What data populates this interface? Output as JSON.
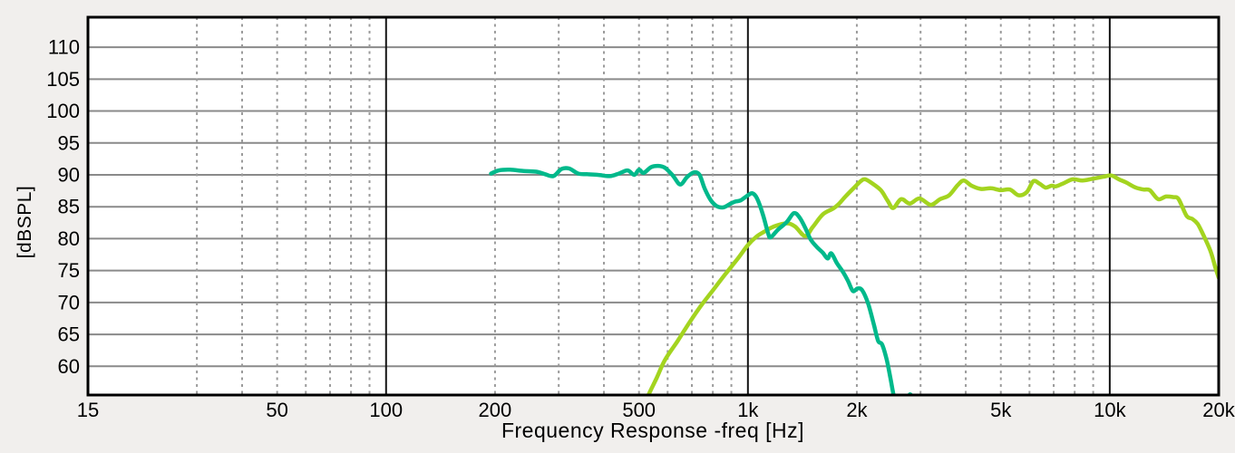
{
  "chart_data": {
    "type": "line",
    "title": "",
    "xlabel": "Frequency Response -freq [Hz]",
    "ylabel": "[dBSPL]",
    "x_scale": "log",
    "xlim": [
      15,
      20000
    ],
    "ylim": [
      55.5,
      114.7
    ],
    "grid": true,
    "legend": "none",
    "x_major_ticks": [
      {
        "f": 15,
        "label": "15"
      },
      {
        "f": 50,
        "label": "50"
      },
      {
        "f": 100,
        "label": "100"
      },
      {
        "f": 200,
        "label": "200"
      },
      {
        "f": 500,
        "label": "500"
      },
      {
        "f": 1000,
        "label": "1k"
      },
      {
        "f": 2000,
        "label": "2k"
      },
      {
        "f": 5000,
        "label": "5k"
      },
      {
        "f": 10000,
        "label": "10k"
      },
      {
        "f": 20000,
        "label": "20k"
      }
    ],
    "y_ticks": [
      60,
      65,
      70,
      75,
      80,
      85,
      90,
      95,
      100,
      105,
      110
    ],
    "x_solid_gridlines": [
      100,
      1000,
      10000
    ],
    "x_dashed_gridlines": [
      30,
      40,
      50,
      60,
      70,
      80,
      90,
      200,
      300,
      400,
      500,
      600,
      700,
      800,
      900,
      2000,
      3000,
      4000,
      5000,
      6000,
      7000,
      8000,
      9000
    ],
    "series": [
      {
        "name": "curve-yellowgreen-highpass",
        "color": "#a3d41f",
        "points": [
          [
            515,
            53.5
          ],
          [
            530,
            55.4
          ],
          [
            560,
            58.2
          ],
          [
            590,
            61.0
          ],
          [
            640,
            64.0
          ],
          [
            690,
            66.9
          ],
          [
            740,
            69.4
          ],
          [
            800,
            71.9
          ],
          [
            865,
            74.4
          ],
          [
            935,
            76.8
          ],
          [
            1000,
            79.0
          ],
          [
            1055,
            80.3
          ],
          [
            1110,
            81.1
          ],
          [
            1180,
            81.9
          ],
          [
            1280,
            82.4
          ],
          [
            1350,
            81.9
          ],
          [
            1440,
            80.4
          ],
          [
            1510,
            81.8
          ],
          [
            1610,
            83.8
          ],
          [
            1720,
            84.7
          ],
          [
            1780,
            85.4
          ],
          [
            1860,
            86.6
          ],
          [
            1950,
            87.8
          ],
          [
            2050,
            89.0
          ],
          [
            2110,
            89.3
          ],
          [
            2200,
            88.7
          ],
          [
            2330,
            87.6
          ],
          [
            2430,
            86.0
          ],
          [
            2520,
            84.8
          ],
          [
            2650,
            86.2
          ],
          [
            2800,
            85.5
          ],
          [
            2980,
            86.3
          ],
          [
            3200,
            85.3
          ],
          [
            3400,
            86.2
          ],
          [
            3600,
            86.8
          ],
          [
            3800,
            88.4
          ],
          [
            3950,
            89.1
          ],
          [
            4150,
            88.3
          ],
          [
            4400,
            87.8
          ],
          [
            4700,
            87.9
          ],
          [
            5000,
            87.6
          ],
          [
            5300,
            87.7
          ],
          [
            5600,
            86.8
          ],
          [
            5900,
            87.3
          ],
          [
            6150,
            89.0
          ],
          [
            6400,
            88.6
          ],
          [
            6650,
            88.0
          ],
          [
            6900,
            88.3
          ],
          [
            7100,
            88.2
          ],
          [
            7400,
            88.6
          ],
          [
            7900,
            89.3
          ],
          [
            8400,
            89.1
          ],
          [
            9000,
            89.4
          ],
          [
            9600,
            89.7
          ],
          [
            10100,
            89.9
          ],
          [
            10600,
            89.3
          ],
          [
            11100,
            88.8
          ],
          [
            11800,
            88.0
          ],
          [
            12400,
            87.7
          ],
          [
            12900,
            87.6
          ],
          [
            13600,
            86.2
          ],
          [
            14300,
            86.6
          ],
          [
            15000,
            86.5
          ],
          [
            15500,
            86.2
          ],
          [
            16300,
            83.6
          ],
          [
            16900,
            83.1
          ],
          [
            17500,
            82.3
          ],
          [
            18200,
            80.4
          ],
          [
            19000,
            78.0
          ],
          [
            19600,
            75.4
          ],
          [
            20000,
            73.9
          ]
        ]
      },
      {
        "name": "curve-teal-lowpass",
        "color": "#00b98b",
        "points": [
          [
            195,
            90.2
          ],
          [
            205,
            90.7
          ],
          [
            220,
            90.8
          ],
          [
            240,
            90.6
          ],
          [
            260,
            90.5
          ],
          [
            275,
            90.1
          ],
          [
            290,
            89.8
          ],
          [
            305,
            90.9
          ],
          [
            320,
            91.0
          ],
          [
            340,
            90.2
          ],
          [
            360,
            90.1
          ],
          [
            385,
            90.0
          ],
          [
            415,
            89.8
          ],
          [
            440,
            90.2
          ],
          [
            465,
            90.7
          ],
          [
            485,
            90.0
          ],
          [
            500,
            90.8
          ],
          [
            515,
            90.3
          ],
          [
            540,
            91.2
          ],
          [
            565,
            91.4
          ],
          [
            590,
            91.1
          ],
          [
            620,
            89.9
          ],
          [
            650,
            88.5
          ],
          [
            680,
            89.7
          ],
          [
            710,
            90.4
          ],
          [
            735,
            90.0
          ],
          [
            760,
            87.8
          ],
          [
            790,
            86.0
          ],
          [
            820,
            85.1
          ],
          [
            855,
            84.9
          ],
          [
            890,
            85.4
          ],
          [
            920,
            85.8
          ],
          [
            955,
            86.0
          ],
          [
            1000,
            86.8
          ],
          [
            1030,
            87.1
          ],
          [
            1060,
            86.3
          ],
          [
            1100,
            83.8
          ],
          [
            1135,
            81.0
          ],
          [
            1155,
            80.2
          ],
          [
            1210,
            81.4
          ],
          [
            1280,
            82.6
          ],
          [
            1340,
            84.0
          ],
          [
            1390,
            83.3
          ],
          [
            1440,
            81.7
          ],
          [
            1490,
            79.9
          ],
          [
            1550,
            78.7
          ],
          [
            1610,
            77.8
          ],
          [
            1660,
            76.9
          ],
          [
            1700,
            77.7
          ],
          [
            1760,
            76.2
          ],
          [
            1830,
            74.8
          ],
          [
            1890,
            73.4
          ],
          [
            1950,
            71.8
          ],
          [
            2010,
            72.2
          ],
          [
            2070,
            71.9
          ],
          [
            2150,
            69.8
          ],
          [
            2230,
            66.5
          ],
          [
            2290,
            64.0
          ],
          [
            2350,
            63.4
          ],
          [
            2420,
            61.0
          ],
          [
            2480,
            58.0
          ],
          [
            2540,
            55.0
          ],
          [
            2640,
            53.0
          ],
          [
            2740,
            54.5
          ],
          [
            2810,
            55.6
          ],
          [
            2880,
            54.3
          ],
          [
            2940,
            52.0
          ]
        ]
      }
    ],
    "style": {
      "outer_background": "#f1efed",
      "plot_background": "#ffffff",
      "frame_color": "#000000",
      "h_gridline_color": "#8a8a8a",
      "dashed_gridline_color": "#9b9b9b",
      "solid_vline_color": "#141414",
      "tick_label_color": "#000000"
    }
  }
}
